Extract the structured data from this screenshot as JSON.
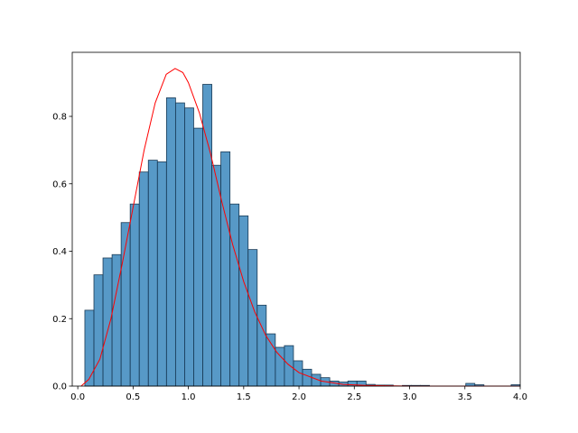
{
  "chart_data": {
    "type": "histogram",
    "bins": [
      0.064,
      0.146,
      0.228,
      0.31,
      0.392,
      0.474,
      0.556,
      0.638,
      0.72,
      0.802,
      0.884,
      0.966,
      1.048,
      1.13,
      1.212,
      1.294,
      1.376,
      1.458,
      1.54,
      1.622,
      1.704,
      1.786,
      1.868,
      1.95,
      2.032,
      2.114,
      2.196,
      2.278,
      2.36,
      2.442,
      2.524,
      2.606,
      2.688,
      2.77,
      2.852,
      2.934,
      3.016,
      3.098,
      3.18,
      3.262,
      3.344,
      3.426,
      3.508,
      3.59,
      3.672,
      3.754,
      3.836,
      3.918,
      4.0
    ],
    "values": [
      0.225,
      0.33,
      0.38,
      0.39,
      0.485,
      0.54,
      0.635,
      0.67,
      0.665,
      0.855,
      0.84,
      0.825,
      0.765,
      0.895,
      0.655,
      0.695,
      0.54,
      0.505,
      0.405,
      0.24,
      0.155,
      0.115,
      0.12,
      0.075,
      0.05,
      0.035,
      0.025,
      0.015,
      0.012,
      0.015,
      0.015,
      0.005,
      0.003,
      0.003,
      0,
      0.002,
      0.002,
      0.002,
      0,
      0,
      0,
      0,
      0.008,
      0.004,
      0,
      0,
      0,
      0.004
    ],
    "color": "#1f77b4",
    "curve": {
      "color": "#ff0000",
      "x": [
        0.03,
        0.1,
        0.2,
        0.3,
        0.4,
        0.5,
        0.6,
        0.7,
        0.8,
        0.88,
        0.95,
        1.0,
        1.1,
        1.2,
        1.3,
        1.4,
        1.5,
        1.6,
        1.7,
        1.8,
        1.9,
        2.0,
        2.2,
        2.4,
        2.6,
        3.0,
        4.0
      ],
      "y": [
        0,
        0.02,
        0.08,
        0.2,
        0.36,
        0.53,
        0.7,
        0.84,
        0.925,
        0.942,
        0.93,
        0.9,
        0.81,
        0.69,
        0.55,
        0.42,
        0.31,
        0.22,
        0.15,
        0.1,
        0.065,
        0.04,
        0.015,
        0.005,
        0.002,
        0,
        0
      ]
    },
    "xlim": [
      -0.05,
      4.0
    ],
    "ylim": [
      0,
      0.99
    ],
    "xticks": [
      {
        "value": 0,
        "label": "0.0"
      },
      {
        "value": 0.5,
        "label": "0.5"
      },
      {
        "value": 1,
        "label": "1.0"
      },
      {
        "value": 1.5,
        "label": "1.5"
      },
      {
        "value": 2,
        "label": "2.0"
      },
      {
        "value": 2.5,
        "label": "2.5"
      },
      {
        "value": 3,
        "label": "3.0"
      },
      {
        "value": 3.5,
        "label": "3.5"
      },
      {
        "value": 4,
        "label": "4.0"
      }
    ],
    "yticks": [
      {
        "value": 0,
        "label": "0.0"
      },
      {
        "value": 0.2,
        "label": "0.2"
      },
      {
        "value": 0.4,
        "label": "0.4"
      },
      {
        "value": 0.6,
        "label": "0.6"
      },
      {
        "value": 0.8,
        "label": "0.8"
      }
    ]
  }
}
